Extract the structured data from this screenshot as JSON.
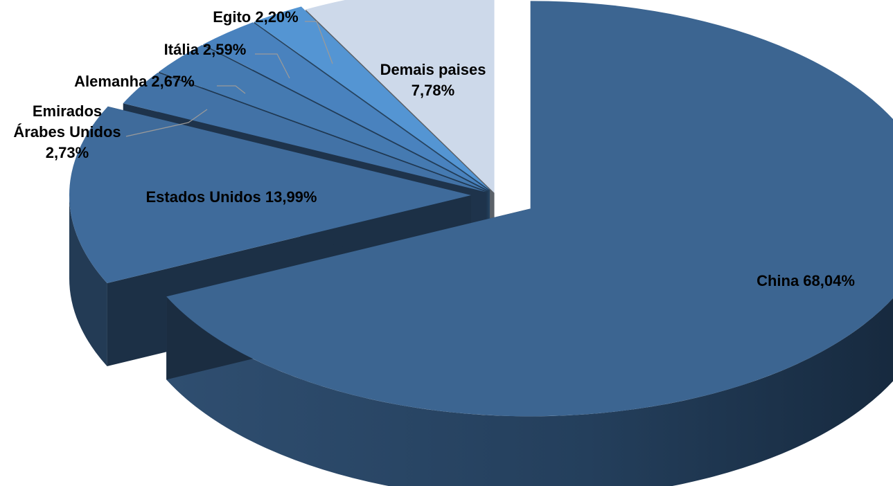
{
  "chart_data": {
    "type": "pie",
    "title": "",
    "slices": [
      {
        "name": "China",
        "value": 68.04,
        "label": [
          "China 68,04%"
        ],
        "color": "#3c6591"
      },
      {
        "name": "Estados Unidos",
        "value": 13.99,
        "label": [
          "Estados Unidos 13,99%"
        ],
        "color": "#3f6b9b"
      },
      {
        "name": "Emirados Árabes Unidos",
        "value": 2.73,
        "label": [
          "Emirados",
          "Árabes Unidos",
          "2,73%"
        ],
        "color": "#4272a6"
      },
      {
        "name": "Alemanha",
        "value": 2.67,
        "label": [
          "Alemanha 2,67%"
        ],
        "color": "#457ab1"
      },
      {
        "name": "Itália",
        "value": 2.59,
        "label": [
          "Itália 2,59%"
        ],
        "color": "#4982be"
      },
      {
        "name": "Egito",
        "value": 2.2,
        "label": [
          "Egito 2,20%"
        ],
        "color": "#5495d3"
      },
      {
        "name": "Demais paises",
        "value": 7.78,
        "label": [
          "Demais paises",
          "7,78%"
        ],
        "color": "#cdd9ea"
      }
    ]
  }
}
